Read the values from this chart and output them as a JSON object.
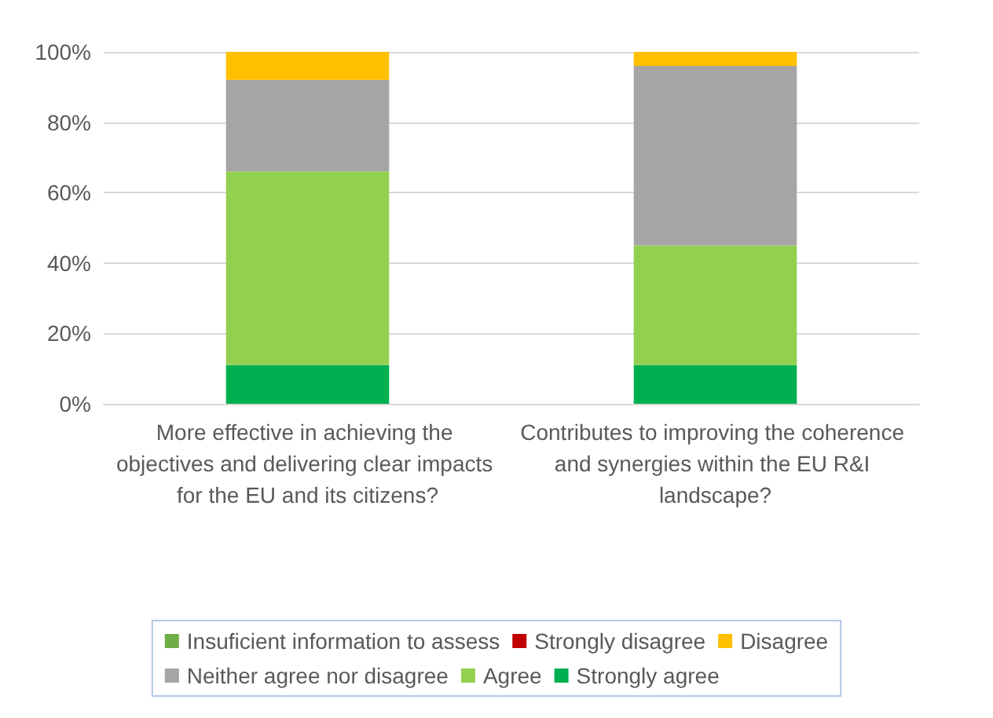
{
  "chart_data": {
    "type": "bar",
    "stacked": true,
    "categories": [
      "More effective in achieving the objectives and delivering clear impacts for the EU and its citizens?",
      "Contributes to improving the coherence and synergies within the EU R&I landscape?"
    ],
    "series": [
      {
        "name": "Strongly agree",
        "color": "#00b050",
        "values": [
          11,
          11
        ]
      },
      {
        "name": "Agree",
        "color": "#92d050",
        "values": [
          55,
          34
        ]
      },
      {
        "name": "Neither agree nor disagree",
        "color": "#a5a5a5",
        "values": [
          26,
          51
        ]
      },
      {
        "name": "Disagree",
        "color": "#ffc000",
        "values": [
          8,
          4
        ]
      },
      {
        "name": "Strongly disagree",
        "color": "#c00000",
        "values": [
          0,
          0
        ]
      },
      {
        "name": "Insuficient information to assess",
        "color": "#70ad47",
        "values": [
          0,
          0
        ]
      }
    ],
    "ylim": [
      0,
      100
    ],
    "yticks": [
      {
        "value": 0,
        "label": "0%"
      },
      {
        "value": 20,
        "label": "20%"
      },
      {
        "value": 40,
        "label": "40%"
      },
      {
        "value": 60,
        "label": "60%"
      },
      {
        "value": 80,
        "label": "80%"
      },
      {
        "value": 100,
        "label": "100%"
      }
    ],
    "grid": true,
    "legend": "bottom"
  }
}
